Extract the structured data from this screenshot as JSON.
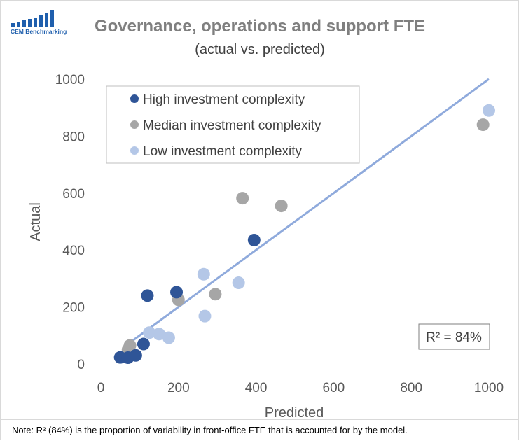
{
  "logo": {
    "text": "CEM Benchmarking",
    "bar_color": "#1f5fad",
    "text_color": "#1f5fad"
  },
  "chart_data": {
    "type": "scatter",
    "title": "Governance, operations and support FTE",
    "subtitle": "(actual vs. predicted)",
    "xlabel": "Predicted",
    "ylabel": "Actual",
    "xlim": [
      0,
      1000
    ],
    "ylim": [
      0,
      1000
    ],
    "xticks": [
      0,
      200,
      400,
      600,
      800,
      1000
    ],
    "yticks": [
      0,
      200,
      400,
      600,
      800,
      1000
    ],
    "xtick_labels": [
      "0",
      "200",
      "400",
      "600",
      "800",
      "1000"
    ],
    "ytick_labels": [
      "0",
      "200",
      "400",
      "600",
      "800",
      "1000"
    ],
    "grid": false,
    "legend_position": "top-left",
    "series": [
      {
        "name": "High investment complexity",
        "color": "#2f5597",
        "points": [
          [
            50,
            23
          ],
          [
            70,
            22
          ],
          [
            90,
            30
          ],
          [
            110,
            70
          ],
          [
            120,
            240
          ],
          [
            195,
            252
          ],
          [
            395,
            435
          ]
        ]
      },
      {
        "name": "Median investment complexity",
        "color": "#a6a6a6",
        "points": [
          [
            70,
            50
          ],
          [
            75,
            65
          ],
          [
            200,
            225
          ],
          [
            295,
            245
          ],
          [
            365,
            582
          ],
          [
            465,
            555
          ],
          [
            985,
            840
          ]
        ]
      },
      {
        "name": "Low investment complexity",
        "color": "#b4c7e7",
        "points": [
          [
            125,
            110
          ],
          [
            150,
            105
          ],
          [
            175,
            92
          ],
          [
            265,
            315
          ],
          [
            268,
            168
          ],
          [
            355,
            285
          ],
          [
            1000,
            890
          ]
        ]
      }
    ],
    "trend_line": {
      "from": [
        70,
        70
      ],
      "to": [
        1000,
        1000
      ],
      "color": "#8faadc"
    },
    "annotation": "R² = 84%"
  },
  "note": "Note: R² (84%) is the proportion of variability in front-office FTE that is accounted for by the model."
}
